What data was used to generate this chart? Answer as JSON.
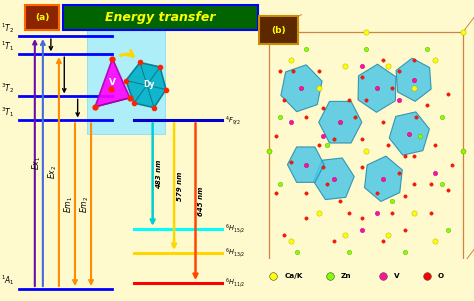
{
  "bg_color": "#FFFACD",
  "title": "Energy transfer",
  "title_bg": "#006400",
  "title_color": "#FFFF00",
  "title_border": "#0000FF",
  "label_a_bg": "#8B4513",
  "label_a_border": "#FF4500",
  "label_a_fg": "#FFFF00",
  "label_b_bg": "#8B4513",
  "label_b_border": "#FFD700",
  "label_b_fg": "#FFFF00",
  "vo4_line_color": "#0000FF",
  "dy_line_color": "#0000CD",
  "dy_level_colors": {
    "4F9/2": "#0000CD",
    "6H15/2": "#00FFFF",
    "6H13/2": "#FFD700",
    "6H11/2": "#FF0000"
  },
  "legend_items": [
    {
      "label": "Ca/K",
      "color": "#FFFF00"
    },
    {
      "label": "Zn",
      "color": "#7FFF00"
    },
    {
      "label": "V",
      "color": "#FF1493"
    },
    {
      "label": "O",
      "color": "#FF0000"
    }
  ]
}
